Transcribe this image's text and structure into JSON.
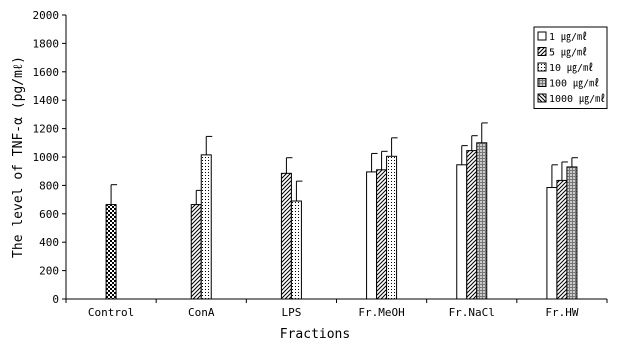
{
  "chart_data": {
    "type": "bar",
    "title": "",
    "xlabel": "Fractions",
    "ylabel": "The level of TNF-α (pg/mℓ)",
    "ylim": [
      0,
      2000
    ],
    "yticks": [
      0,
      200,
      400,
      600,
      800,
      1000,
      1200,
      1400,
      1600,
      1800,
      2000
    ],
    "grid": false,
    "legend_position": "top-right",
    "categories": [
      "Control",
      "ConA",
      "LPS",
      "Fr.MeOH",
      "Fr.NaCl",
      "Fr.HW"
    ],
    "series": [
      {
        "name": "1 ㎍/㎖",
        "pattern": "blank",
        "values": [
          null,
          null,
          null,
          895,
          945,
          785
        ],
        "errors": [
          null,
          null,
          null,
          130,
          135,
          160
        ]
      },
      {
        "name": "5 ㎍/㎖",
        "pattern": "diagonal",
        "values": [
          null,
          665,
          885,
          910,
          1045,
          835
        ],
        "errors": [
          null,
          100,
          110,
          130,
          105,
          130
        ]
      },
      {
        "name": "10 ㎍/㎖",
        "pattern": "dots",
        "values": [
          null,
          1015,
          690,
          1005,
          null,
          null
        ],
        "errors": [
          null,
          130,
          140,
          130,
          null,
          null
        ]
      },
      {
        "name": "100 ㎍/㎖",
        "pattern": "grid",
        "values": [
          null,
          null,
          null,
          null,
          1100,
          930
        ],
        "errors": [
          null,
          null,
          null,
          null,
          140,
          65
        ]
      },
      {
        "name": "1000 ㎍/㎖",
        "pattern": "hatch",
        "values": [
          null,
          null,
          null,
          null,
          null,
          null
        ],
        "errors": [
          null,
          null,
          null,
          null,
          null,
          null
        ]
      }
    ],
    "control": {
      "category": "Control",
      "value": 665,
      "error": 140,
      "pattern": "checker"
    }
  }
}
